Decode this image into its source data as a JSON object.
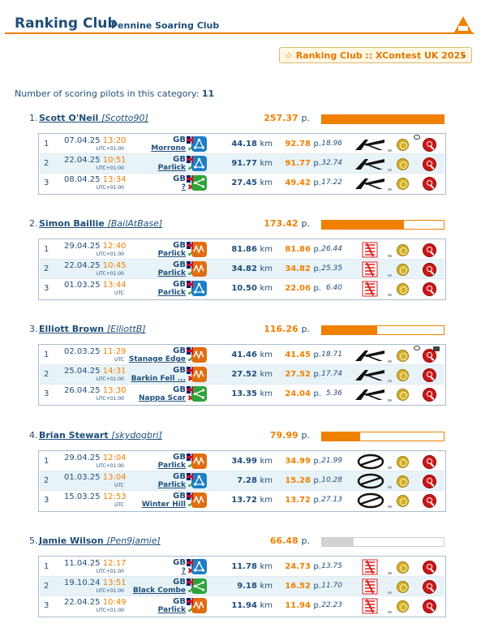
{
  "header": {
    "title": "Ranking Club",
    "subtitle": "Pennine Soaring Club"
  },
  "dropdown": {
    "label": "☆ Ranking Club :: XContest UK 2025",
    "chevron": "⌄"
  },
  "summary": {
    "label": "Number of scoring pilots in this category:",
    "count": "11"
  },
  "pilots": [
    {
      "rank": "1.",
      "name": "Scott O'Neil",
      "nick": "[Scotto90]",
      "score": "257.37",
      "unit": "p.",
      "bar_fraction": 1.0,
      "bar_style": "orange",
      "flights": [
        {
          "n": "1",
          "date": "07.04.25",
          "time": "13:20",
          "tz": "UTC+01:00",
          "country": "GB",
          "site": "Morrone",
          "ok": "✔",
          "ok_state": "good",
          "type": "blue",
          "km": "44.18",
          "km_unit": "km",
          "pts": "92.78",
          "pts_unit": "p.",
          "speed": "18.96",
          "glider": "ak",
          "bubble": true,
          "cam": false
        },
        {
          "n": "2",
          "date": "22.04.25",
          "time": "10:51",
          "tz": "UTC+01:00",
          "country": "GB",
          "site": "Parlick",
          "ok": "✔",
          "ok_state": "good",
          "type": "blue",
          "km": "91.77",
          "km_unit": "km",
          "pts": "91.77",
          "pts_unit": "p.",
          "speed": "32.74",
          "glider": "ak",
          "bubble": false,
          "cam": false
        },
        {
          "n": "3",
          "date": "08.04.25",
          "time": "13:34",
          "tz": "UTC+01:00",
          "country": "GB",
          "site": "?",
          "ok": "✖",
          "ok_state": "bad",
          "type": "green",
          "km": "27.45",
          "km_unit": "km",
          "pts": "49.42",
          "pts_unit": "p.",
          "speed": "17.22",
          "glider": "ak",
          "bubble": false,
          "cam": false
        }
      ]
    },
    {
      "rank": "2.",
      "name": "Simon Baillie",
      "nick": "[BailAtBase]",
      "score": "173.42",
      "unit": "p.",
      "bar_fraction": 0.67,
      "bar_style": "orange",
      "flights": [
        {
          "n": "1",
          "date": "29.04.25",
          "time": "12:40",
          "tz": "UTC+01:00",
          "country": "GB",
          "site": "Parlick",
          "ok": "✔",
          "ok_state": "good",
          "type": "orange",
          "km": "81.86",
          "km_unit": "km",
          "pts": "81.86",
          "pts_unit": "p.",
          "speed": "26.44",
          "glider": "nova",
          "bubble": false,
          "cam": false
        },
        {
          "n": "2",
          "date": "22.04.25",
          "time": "10:45",
          "tz": "UTC+01:00",
          "country": "GB",
          "site": "Parlick",
          "ok": "✔",
          "ok_state": "good",
          "type": "orange",
          "km": "34.82",
          "km_unit": "km",
          "pts": "34.82",
          "pts_unit": "p.",
          "speed": "25.35",
          "glider": "nova",
          "bubble": false,
          "cam": false
        },
        {
          "n": "3",
          "date": "01.03.25",
          "time": "13:44",
          "tz": "UTC",
          "country": "GB",
          "site": "Parlick",
          "ok": "✔",
          "ok_state": "good",
          "type": "blue",
          "km": "10.50",
          "km_unit": "km",
          "pts": "22.06",
          "pts_unit": "p.",
          "speed": "6.40",
          "glider": "nova",
          "bubble": false,
          "cam": false
        }
      ]
    },
    {
      "rank": "3.",
      "name": "Elliott Brown",
      "nick": "[ElliottB]",
      "score": "116.26",
      "unit": "p.",
      "bar_fraction": 0.45,
      "bar_style": "orange",
      "flights": [
        {
          "n": "1",
          "date": "02.03.25",
          "time": "11:29",
          "tz": "UTC",
          "country": "GB",
          "site": "Stanage Edge",
          "ok": "✔",
          "ok_state": "good",
          "type": "orange",
          "km": "41.46",
          "km_unit": "km",
          "pts": "41.45",
          "pts_unit": "p.",
          "speed": "18.71",
          "glider": "ak",
          "bubble": true,
          "cam": true
        },
        {
          "n": "2",
          "date": "25.04.25",
          "time": "14:31",
          "tz": "UTC+01:00",
          "country": "GB",
          "site": "Barkin Fell ...",
          "ok": "✖",
          "ok_state": "bad",
          "type": "orange",
          "km": "27.52",
          "km_unit": "km",
          "pts": "27.52",
          "pts_unit": "p.",
          "speed": "17.74",
          "glider": "ak",
          "bubble": false,
          "cam": false
        },
        {
          "n": "3",
          "date": "26.04.25",
          "time": "13:30",
          "tz": "UTC+01:00",
          "country": "GB",
          "site": "Nappa Scar",
          "ok": "✖",
          "ok_state": "bad",
          "type": "green",
          "km": "13.35",
          "km_unit": "km",
          "pts": "24.04",
          "pts_unit": "p.",
          "speed": "5.36",
          "glider": "ak",
          "bubble": false,
          "cam": false
        }
      ]
    },
    {
      "rank": "4.",
      "name": "Brian Stewart",
      "nick": "[skydogbri]",
      "score": "79.99",
      "unit": "p.",
      "bar_fraction": 0.31,
      "bar_style": "orange",
      "flights": [
        {
          "n": "1",
          "date": "29.04.25",
          "time": "12:04",
          "tz": "UTC+01:00",
          "country": "GB",
          "site": "Parlick",
          "ok": "✔",
          "ok_state": "good",
          "type": "orange",
          "km": "34.99",
          "km_unit": "km",
          "pts": "34.99",
          "pts_unit": "p.",
          "speed": "21.99",
          "glider": "ozone",
          "bubble": false,
          "cam": false
        },
        {
          "n": "2",
          "date": "01.03.25",
          "time": "13:04",
          "tz": "UTC",
          "country": "GB",
          "site": "Parlick",
          "ok": "✔",
          "ok_state": "good",
          "type": "blue",
          "km": "7.28",
          "km_unit": "km",
          "pts": "15.28",
          "pts_unit": "p.",
          "speed": "10.28",
          "glider": "ozone",
          "bubble": false,
          "cam": false
        },
        {
          "n": "3",
          "date": "15.03.25",
          "time": "12:53",
          "tz": "UTC",
          "country": "GB",
          "site": "Winter Hill",
          "ok": "✔",
          "ok_state": "good",
          "type": "orange",
          "km": "13.72",
          "km_unit": "km",
          "pts": "13.72",
          "pts_unit": "p.",
          "speed": "27.13",
          "glider": "ozone",
          "bubble": false,
          "cam": false
        }
      ]
    },
    {
      "rank": "5.",
      "name": "Jamie Wilson",
      "nick": "[Pen9jamie]",
      "score": "66.48",
      "unit": "p.",
      "bar_fraction": 0.26,
      "bar_style": "grey",
      "flights": [
        {
          "n": "1",
          "date": "11.04.25",
          "time": "12:17",
          "tz": "UTC+01:00",
          "country": "GB",
          "site": "?",
          "ok": "✖",
          "ok_state": "bad",
          "type": "blue",
          "km": "11.78",
          "km_unit": "km",
          "pts": "24.73",
          "pts_unit": "p.",
          "speed": "13.75",
          "glider": "nova",
          "bubble": false,
          "cam": false
        },
        {
          "n": "2",
          "date": "19.10.24",
          "time": "13:51",
          "tz": "UTC+01:00",
          "country": "GB",
          "site": "Black Combe",
          "ok": "✔",
          "ok_state": "good",
          "type": "green",
          "km": "9.18",
          "km_unit": "km",
          "pts": "16.52",
          "pts_unit": "p.",
          "speed": "11.70",
          "glider": "nova",
          "bubble": false,
          "cam": false
        },
        {
          "n": "3",
          "date": "22.04.25",
          "time": "10:49",
          "tz": "UTC+01:00",
          "country": "GB",
          "site": "Parlick",
          "ok": "✔",
          "ok_state": "good",
          "type": "orange",
          "km": "11.94",
          "km_unit": "km",
          "pts": "11.94",
          "pts_unit": "p.",
          "speed": "22.23",
          "glider": "nova",
          "bubble": false,
          "cam": false
        }
      ]
    }
  ]
}
